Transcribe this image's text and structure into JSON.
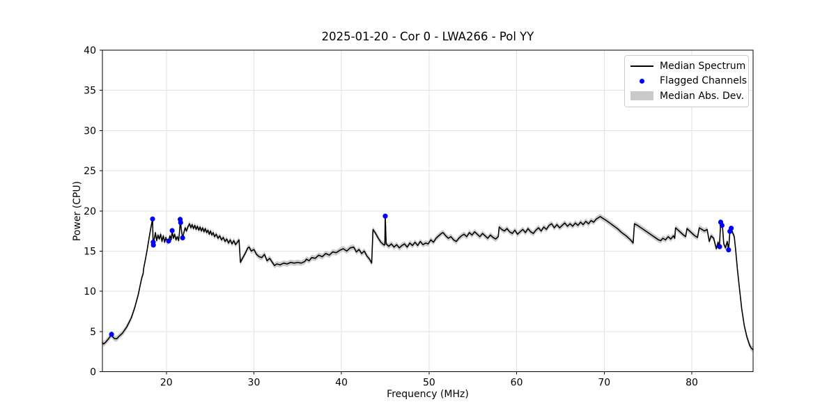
{
  "figure": {
    "background": "#ffffff"
  },
  "chart_data": {
    "type": "line",
    "title": "2025-01-20 - Cor 0 - LWA266 - Pol YY",
    "xlabel": "Frequency (MHz)",
    "ylabel": "Power (CPU)",
    "xlim": [
      12.7,
      87.0
    ],
    "ylim": [
      0,
      40
    ],
    "xticks": [
      20,
      30,
      40,
      50,
      60,
      70,
      80
    ],
    "yticks": [
      0,
      5,
      10,
      15,
      20,
      25,
      30,
      35,
      40
    ],
    "grid": true,
    "colors": {
      "spectrum": "#000000",
      "flagged": "#0000ff",
      "band": "#c3c3c3",
      "grid": "#e2e2e2",
      "axes": "#000000"
    },
    "legend": {
      "position": "upper-right",
      "entries": [
        {
          "label": "Median Spectrum",
          "marker": "line",
          "color": "#000000"
        },
        {
          "label": "Flagged Channels",
          "marker": "dot",
          "color": "#0000ff"
        },
        {
          "label": "Median Abs. Dev.",
          "marker": "patch",
          "color": "#c9c9c9"
        }
      ]
    },
    "series": [
      {
        "name": "Median Spectrum",
        "type": "line",
        "points": [
          [
            12.7,
            3.6
          ],
          [
            12.85,
            3.45
          ],
          [
            13.1,
            3.7
          ],
          [
            13.4,
            4.1
          ],
          [
            13.6,
            4.4
          ],
          [
            13.74,
            4.5
          ],
          [
            13.9,
            4.3
          ],
          [
            14.1,
            4.1
          ],
          [
            14.35,
            4.1
          ],
          [
            14.6,
            4.4
          ],
          [
            15.0,
            4.8
          ],
          [
            15.5,
            5.6
          ],
          [
            16.0,
            6.7
          ],
          [
            16.4,
            8.0
          ],
          [
            16.8,
            9.6
          ],
          [
            17.0,
            10.7
          ],
          [
            17.2,
            11.7
          ],
          [
            17.35,
            12.2
          ],
          [
            17.4,
            12.8
          ],
          [
            17.6,
            13.9
          ],
          [
            17.8,
            15.1
          ],
          [
            18.0,
            16.4
          ],
          [
            18.15,
            17.4
          ],
          [
            18.3,
            18.3
          ],
          [
            18.43,
            19.0
          ],
          [
            18.48,
            16.1
          ],
          [
            18.6,
            16.4
          ],
          [
            18.75,
            17.3
          ],
          [
            18.9,
            16.3
          ],
          [
            19.05,
            17.0
          ],
          [
            19.2,
            16.5
          ],
          [
            19.35,
            17.1
          ],
          [
            19.5,
            16.2
          ],
          [
            19.65,
            16.9
          ],
          [
            19.8,
            16.1
          ],
          [
            19.95,
            16.7
          ],
          [
            20.1,
            16.1
          ],
          [
            20.26,
            16.2
          ],
          [
            20.4,
            16.9
          ],
          [
            20.55,
            16.4
          ],
          [
            20.66,
            17.5
          ],
          [
            20.8,
            16.6
          ],
          [
            20.95,
            17.1
          ],
          [
            21.1,
            16.4
          ],
          [
            21.25,
            16.8
          ],
          [
            21.4,
            16.3
          ],
          [
            21.5,
            17.3
          ],
          [
            21.6,
            18.9
          ],
          [
            21.7,
            17.8
          ],
          [
            21.86,
            16.6
          ],
          [
            22.0,
            17.3
          ],
          [
            22.15,
            17.9
          ],
          [
            22.3,
            17.5
          ],
          [
            22.45,
            18.0
          ],
          [
            22.65,
            18.4
          ],
          [
            22.8,
            17.9
          ],
          [
            22.95,
            18.3
          ],
          [
            23.1,
            17.8
          ],
          [
            23.25,
            18.2
          ],
          [
            23.4,
            17.7
          ],
          [
            23.55,
            18.1
          ],
          [
            23.7,
            17.6
          ],
          [
            23.85,
            18.0
          ],
          [
            24.0,
            17.5
          ],
          [
            24.15,
            17.9
          ],
          [
            24.3,
            17.4
          ],
          [
            24.45,
            17.8
          ],
          [
            24.6,
            17.3
          ],
          [
            24.75,
            17.6
          ],
          [
            24.9,
            17.1
          ],
          [
            25.05,
            17.5
          ],
          [
            25.2,
            17.0
          ],
          [
            25.35,
            17.3
          ],
          [
            25.5,
            16.8
          ],
          [
            25.7,
            17.1
          ],
          [
            25.9,
            16.6
          ],
          [
            26.1,
            16.9
          ],
          [
            26.3,
            16.4
          ],
          [
            26.5,
            16.7
          ],
          [
            26.7,
            16.2
          ],
          [
            26.9,
            16.5
          ],
          [
            27.1,
            16.0
          ],
          [
            27.3,
            16.4
          ],
          [
            27.5,
            15.9
          ],
          [
            27.7,
            16.3
          ],
          [
            27.9,
            15.8
          ],
          [
            28.1,
            16.1
          ],
          [
            28.3,
            16.4
          ],
          [
            28.46,
            13.6
          ],
          [
            28.7,
            14.1
          ],
          [
            29.0,
            14.7
          ],
          [
            29.3,
            15.4
          ],
          [
            29.45,
            15.5
          ],
          [
            29.7,
            15.0
          ],
          [
            30.0,
            15.2
          ],
          [
            30.3,
            14.6
          ],
          [
            30.6,
            14.3
          ],
          [
            30.9,
            14.2
          ],
          [
            31.2,
            14.6
          ],
          [
            31.5,
            13.8
          ],
          [
            31.8,
            14.1
          ],
          [
            32.1,
            13.6
          ],
          [
            32.35,
            13.2
          ],
          [
            32.6,
            13.4
          ],
          [
            33.0,
            13.3
          ],
          [
            33.4,
            13.5
          ],
          [
            33.8,
            13.4
          ],
          [
            34.2,
            13.6
          ],
          [
            34.6,
            13.5
          ],
          [
            35.0,
            13.6
          ],
          [
            35.4,
            13.5
          ],
          [
            35.8,
            13.7
          ],
          [
            36.0,
            14.0
          ],
          [
            36.3,
            13.8
          ],
          [
            36.6,
            14.2
          ],
          [
            37.0,
            14.1
          ],
          [
            37.4,
            14.5
          ],
          [
            37.8,
            14.3
          ],
          [
            38.2,
            14.7
          ],
          [
            38.6,
            14.5
          ],
          [
            39.0,
            14.9
          ],
          [
            39.4,
            14.8
          ],
          [
            39.8,
            15.1
          ],
          [
            40.2,
            15.3
          ],
          [
            40.6,
            15.0
          ],
          [
            41.0,
            15.4
          ],
          [
            41.4,
            15.5
          ],
          [
            41.7,
            14.9
          ],
          [
            42.0,
            15.2
          ],
          [
            42.3,
            14.7
          ],
          [
            42.6,
            15.0
          ],
          [
            42.9,
            14.4
          ],
          [
            43.2,
            14.0
          ],
          [
            43.45,
            13.5
          ],
          [
            43.6,
            17.7
          ],
          [
            43.9,
            17.2
          ],
          [
            44.2,
            16.6
          ],
          [
            44.5,
            16.1
          ],
          [
            44.8,
            15.8
          ],
          [
            44.95,
            15.75
          ],
          [
            45.0,
            19.35
          ],
          [
            45.1,
            15.9
          ],
          [
            45.4,
            15.6
          ],
          [
            45.7,
            15.9
          ],
          [
            46.0,
            15.5
          ],
          [
            46.3,
            15.8
          ],
          [
            46.6,
            15.4
          ],
          [
            46.9,
            15.7
          ],
          [
            47.2,
            15.9
          ],
          [
            47.5,
            15.5
          ],
          [
            47.8,
            16.0
          ],
          [
            48.1,
            15.7
          ],
          [
            48.4,
            16.1
          ],
          [
            48.7,
            15.7
          ],
          [
            49.0,
            16.2
          ],
          [
            49.3,
            15.8
          ],
          [
            49.6,
            16.0
          ],
          [
            49.9,
            15.9
          ],
          [
            50.2,
            16.4
          ],
          [
            50.5,
            16.1
          ],
          [
            50.8,
            16.6
          ],
          [
            51.1,
            16.9
          ],
          [
            51.4,
            17.2
          ],
          [
            51.6,
            17.3
          ],
          [
            51.9,
            16.9
          ],
          [
            52.2,
            16.6
          ],
          [
            52.5,
            16.8
          ],
          [
            52.8,
            16.4
          ],
          [
            53.1,
            16.2
          ],
          [
            53.4,
            16.6
          ],
          [
            53.7,
            16.9
          ],
          [
            54.0,
            17.1
          ],
          [
            54.3,
            16.8
          ],
          [
            54.6,
            17.3
          ],
          [
            54.9,
            17.0
          ],
          [
            55.2,
            17.4
          ],
          [
            55.5,
            17.1
          ],
          [
            55.8,
            16.8
          ],
          [
            56.1,
            17.2
          ],
          [
            56.4,
            16.9
          ],
          [
            56.7,
            16.6
          ],
          [
            57.0,
            17.0
          ],
          [
            57.3,
            16.7
          ],
          [
            57.6,
            16.5
          ],
          [
            57.9,
            16.8
          ],
          [
            58.0,
            18.0
          ],
          [
            58.3,
            17.7
          ],
          [
            58.6,
            17.5
          ],
          [
            58.9,
            17.8
          ],
          [
            59.2,
            17.4
          ],
          [
            59.5,
            17.2
          ],
          [
            59.8,
            17.6
          ],
          [
            60.1,
            17.1
          ],
          [
            60.4,
            17.4
          ],
          [
            60.7,
            17.7
          ],
          [
            61.0,
            17.3
          ],
          [
            61.3,
            17.8
          ],
          [
            61.6,
            17.4
          ],
          [
            61.9,
            17.2
          ],
          [
            62.2,
            17.6
          ],
          [
            62.5,
            17.9
          ],
          [
            62.8,
            17.5
          ],
          [
            63.1,
            18.0
          ],
          [
            63.4,
            17.7
          ],
          [
            63.7,
            18.2
          ],
          [
            64.0,
            18.4
          ],
          [
            64.3,
            17.9
          ],
          [
            64.6,
            18.3
          ],
          [
            64.9,
            17.9
          ],
          [
            65.2,
            18.2
          ],
          [
            65.5,
            18.5
          ],
          [
            65.8,
            18.1
          ],
          [
            66.1,
            18.4
          ],
          [
            66.4,
            18.1
          ],
          [
            66.7,
            18.5
          ],
          [
            67.0,
            18.2
          ],
          [
            67.3,
            18.6
          ],
          [
            67.6,
            18.3
          ],
          [
            67.9,
            18.7
          ],
          [
            68.2,
            18.4
          ],
          [
            68.5,
            18.8
          ],
          [
            68.8,
            18.6
          ],
          [
            69.1,
            19.0
          ],
          [
            69.4,
            19.2
          ],
          [
            69.55,
            19.3
          ],
          [
            69.8,
            19.1
          ],
          [
            70.1,
            18.9
          ],
          [
            70.5,
            18.6
          ],
          [
            71.0,
            18.2
          ],
          [
            71.5,
            17.8
          ],
          [
            72.0,
            17.3
          ],
          [
            72.5,
            16.9
          ],
          [
            73.0,
            16.4
          ],
          [
            73.3,
            16.0
          ],
          [
            73.45,
            18.4
          ],
          [
            73.8,
            18.2
          ],
          [
            74.2,
            17.9
          ],
          [
            74.6,
            17.6
          ],
          [
            75.0,
            17.3
          ],
          [
            75.4,
            17.0
          ],
          [
            75.8,
            16.7
          ],
          [
            76.2,
            16.4
          ],
          [
            76.45,
            16.3
          ],
          [
            76.7,
            16.6
          ],
          [
            77.0,
            16.4
          ],
          [
            77.3,
            16.8
          ],
          [
            77.6,
            16.5
          ],
          [
            77.9,
            16.9
          ],
          [
            78.05,
            16.6
          ],
          [
            78.15,
            17.9
          ],
          [
            78.45,
            17.6
          ],
          [
            78.75,
            17.3
          ],
          [
            79.05,
            17.0
          ],
          [
            79.3,
            16.8
          ],
          [
            79.45,
            17.8
          ],
          [
            79.75,
            17.5
          ],
          [
            80.05,
            17.2
          ],
          [
            80.35,
            16.9
          ],
          [
            80.65,
            16.7
          ],
          [
            80.85,
            17.9
          ],
          [
            81.15,
            17.7
          ],
          [
            81.45,
            17.5
          ],
          [
            81.75,
            17.7
          ],
          [
            82.0,
            16.2
          ],
          [
            82.2,
            16.9
          ],
          [
            82.5,
            16.6
          ],
          [
            82.8,
            15.3
          ],
          [
            83.0,
            16.1
          ],
          [
            83.15,
            15.5
          ],
          [
            83.3,
            18.6
          ],
          [
            83.5,
            18.1
          ],
          [
            83.65,
            15.9
          ],
          [
            83.85,
            15.4
          ],
          [
            84.05,
            16.2
          ],
          [
            84.2,
            15.1
          ],
          [
            84.35,
            17.5
          ],
          [
            84.5,
            17.8
          ],
          [
            84.7,
            17.2
          ],
          [
            84.85,
            16.8
          ],
          [
            85.0,
            15.2
          ],
          [
            85.2,
            12.8
          ],
          [
            85.45,
            10.3
          ],
          [
            85.7,
            7.8
          ],
          [
            86.0,
            5.7
          ],
          [
            86.3,
            4.3
          ],
          [
            86.6,
            3.3
          ],
          [
            86.8,
            2.9
          ],
          [
            87.0,
            2.75
          ]
        ]
      },
      {
        "name": "Flagged Channels",
        "type": "scatter",
        "points": [
          [
            13.74,
            4.65
          ],
          [
            18.43,
            19.0
          ],
          [
            18.5,
            16.1
          ],
          [
            18.52,
            15.75
          ],
          [
            20.26,
            16.25
          ],
          [
            20.66,
            17.55
          ],
          [
            21.58,
            18.95
          ],
          [
            21.63,
            18.55
          ],
          [
            21.86,
            16.65
          ],
          [
            45.0,
            19.35
          ],
          [
            83.18,
            15.55
          ],
          [
            83.3,
            18.6
          ],
          [
            83.45,
            18.2
          ],
          [
            84.2,
            15.15
          ],
          [
            84.35,
            17.45
          ],
          [
            84.5,
            17.85
          ]
        ]
      },
      {
        "name": "Median Abs. Dev.",
        "type": "band",
        "around": "Median Spectrum",
        "half_width": 0.35
      }
    ]
  }
}
